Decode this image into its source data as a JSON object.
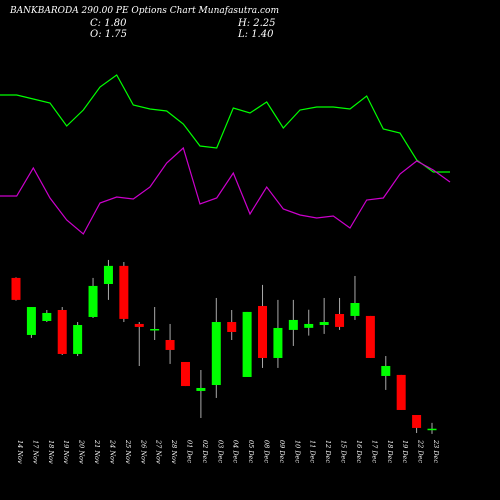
{
  "chart_data": {
    "type": "candlestick",
    "title": "BANKBARODA 290.00 PE Options Chart Munafasutra.com",
    "info": [
      "C: 1.80",
      "H: 2.25",
      "O: 1.75",
      "L: 1.40"
    ],
    "categories": [
      "14 Nov",
      "17 Nov",
      "18 Nov",
      "19 Nov",
      "20 Nov",
      "21 Nov",
      "24 Nov",
      "25 Nov",
      "26 Nov",
      "27 Nov",
      "28 Nov",
      "01 Dec",
      "02 Dec",
      "03 Dec",
      "04 Dec",
      "05 Dec",
      "08 Dec",
      "09 Dec",
      "10 Dec",
      "11 Dec",
      "12 Dec",
      "15 Dec",
      "16 Dec",
      "17 Dec",
      "18 Dec",
      "19 Dec",
      "22 Dec",
      "23 Dec"
    ],
    "ohlc": {
      "open": [
        13.46,
        9.05,
        10.13,
        10.98,
        7.58,
        10.44,
        12.99,
        14.39,
        9.9,
        9.44,
        8.66,
        6.96,
        4.72,
        5.18,
        10.05,
        5.8,
        11.29,
        7.27,
        9.44,
        9.6,
        9.82,
        10.67,
        10.52,
        10.52,
        5.88,
        5.96,
        2.86,
        1.75
      ],
      "high": [
        13.5,
        11.21,
        10.98,
        11.21,
        10.05,
        13.46,
        14.85,
        14.69,
        10.05,
        11.21,
        9.9,
        6.96,
        6.34,
        11.91,
        10.98,
        10.83,
        12.92,
        11.76,
        11.76,
        11.0,
        11.91,
        11.91,
        13.61,
        10.52,
        7.42,
        5.96,
        2.86,
        2.25
      ],
      "low": [
        11.7,
        8.82,
        10.05,
        7.5,
        7.42,
        10.36,
        11.76,
        10.05,
        6.65,
        8.66,
        6.81,
        5.1,
        2.63,
        4.18,
        8.66,
        5.8,
        6.5,
        6.5,
        8.2,
        9.0,
        9.13,
        9.44,
        10.21,
        7.27,
        4.8,
        3.25,
        1.47,
        1.4
      ],
      "close": [
        11.76,
        11.21,
        10.75,
        7.58,
        9.82,
        12.84,
        14.39,
        10.29,
        9.67,
        9.51,
        7.89,
        5.1,
        4.95,
        10.05,
        9.28,
        10.83,
        7.27,
        9.59,
        10.21,
        9.9,
        10.05,
        9.67,
        11.52,
        7.27,
        6.65,
        3.25,
        1.86,
        1.8
      ]
    },
    "up_color": "#00ff00",
    "down_color": "#ff0000",
    "ylim": [
      0,
      15
    ],
    "series": [
      {
        "color": "#00ff00",
        "values": [
          72.5,
          72.5,
          70.5,
          68.5,
          57,
          65,
          76.5,
          82.5,
          67.5,
          65.5,
          64.5,
          58,
          47,
          46,
          66,
          63.5,
          69,
          56,
          65,
          66.5,
          66.5,
          65.5,
          72,
          55.5,
          53.5,
          40,
          34,
          34
        ]
      },
      {
        "color": "#cc00cc",
        "values": [
          22,
          22,
          36,
          21,
          10,
          3,
          18.5,
          21.5,
          20.5,
          26.5,
          38.5,
          46,
          18,
          21,
          33.5,
          13,
          26.5,
          15.5,
          12.5,
          11,
          12,
          6,
          20,
          21,
          33,
          39.5,
          35,
          29
        ]
      }
    ],
    "y2lim": [
      0,
      100
    ]
  }
}
